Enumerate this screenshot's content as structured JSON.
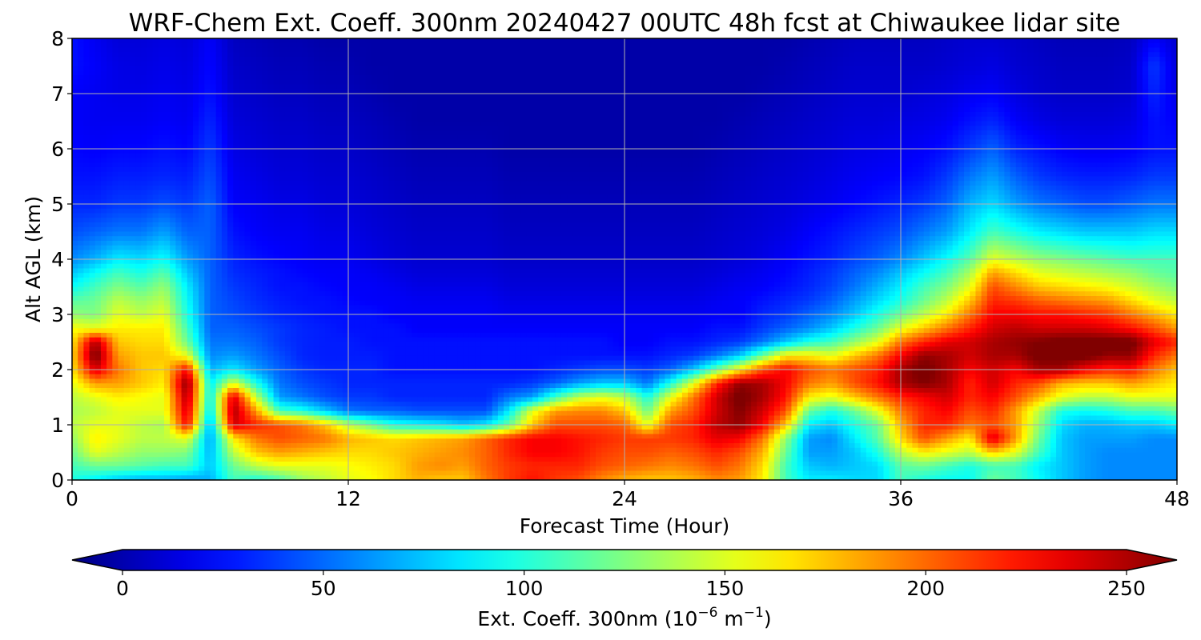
{
  "chart_data": {
    "type": "heatmap",
    "title": "WRF-Chem Ext. Coeff. 300nm  20240427 00UTC 48h fcst at Chiwaukee lidar site",
    "xlabel": "Forecast Time (Hour)",
    "ylabel": "Alt AGL (km)",
    "xlim": [
      0,
      48
    ],
    "ylim": [
      0,
      8
    ],
    "xticks": [
      0,
      12,
      24,
      36,
      48
    ],
    "yticks": [
      0,
      1,
      2,
      3,
      4,
      5,
      6,
      7,
      8
    ],
    "grid": true,
    "colormap": "jet",
    "colorbar": {
      "label_main": "Ext. Coeff. 300nm  (10",
      "exp1": "−6",
      "label_mid": " m",
      "exp2": "−1",
      "label_end": ")",
      "range": [
        0,
        250
      ],
      "ticks": [
        0,
        50,
        100,
        150,
        200,
        250
      ],
      "extend": "both",
      "orientation": "horizontal"
    },
    "x": [
      0,
      1,
      2,
      3,
      4,
      5,
      6,
      7,
      8,
      9,
      10,
      11,
      12,
      13,
      14,
      15,
      16,
      17,
      18,
      19,
      20,
      21,
      22,
      23,
      24,
      25,
      26,
      27,
      28,
      29,
      30,
      31,
      32,
      33,
      34,
      35,
      36,
      37,
      38,
      39,
      40,
      41,
      42,
      43,
      44,
      45,
      46,
      47,
      48
    ],
    "y": [
      0,
      0.25,
      0.5,
      0.75,
      1.0,
      1.25,
      1.5,
      1.75,
      2.0,
      2.25,
      2.5,
      2.75,
      3.0,
      3.25,
      3.5,
      3.75,
      4.0,
      4.5,
      5.0,
      5.5,
      6.0,
      6.5,
      7.0,
      7.5,
      8.0
    ],
    "z": [
      [
        100,
        90,
        80,
        75,
        75,
        70,
        75,
        110,
        100,
        110,
        130,
        140,
        150,
        155,
        165,
        175,
        170,
        170,
        190,
        205,
        215,
        205,
        200,
        185,
        175,
        170,
        170,
        175,
        185,
        180,
        160,
        110,
        90,
        90,
        85,
        85,
        110,
        100,
        95,
        95,
        120,
        110,
        95,
        80,
        70,
        65,
        65,
        65,
        65
      ],
      [
        110,
        120,
        120,
        115,
        110,
        110,
        80,
        120,
        140,
        150,
        150,
        150,
        155,
        160,
        165,
        180,
        185,
        180,
        195,
        205,
        210,
        210,
        210,
        200,
        195,
        190,
        185,
        190,
        200,
        190,
        165,
        110,
        80,
        75,
        80,
        85,
        115,
        120,
        110,
        100,
        110,
        110,
        90,
        80,
        70,
        65,
        65,
        65,
        65
      ],
      [
        120,
        150,
        140,
        130,
        130,
        125,
        75,
        140,
        170,
        180,
        175,
        170,
        165,
        165,
        170,
        175,
        180,
        185,
        195,
        210,
        220,
        220,
        215,
        205,
        200,
        200,
        195,
        200,
        210,
        200,
        175,
        120,
        70,
        70,
        80,
        100,
        140,
        160,
        150,
        140,
        170,
        150,
        110,
        80,
        70,
        65,
        65,
        65,
        65
      ],
      [
        130,
        160,
        150,
        140,
        140,
        150,
        70,
        160,
        190,
        200,
        195,
        190,
        175,
        170,
        165,
        170,
        175,
        180,
        195,
        210,
        220,
        220,
        215,
        210,
        205,
        205,
        205,
        210,
        225,
        220,
        190,
        130,
        70,
        65,
        90,
        115,
        165,
        200,
        180,
        160,
        230,
        180,
        120,
        80,
        70,
        70,
        70,
        65,
        65
      ],
      [
        140,
        150,
        150,
        140,
        135,
        220,
        70,
        230,
        210,
        200,
        190,
        170,
        140,
        120,
        100,
        95,
        90,
        80,
        90,
        120,
        170,
        200,
        200,
        200,
        195,
        150,
        200,
        210,
        235,
        245,
        220,
        170,
        90,
        80,
        100,
        120,
        175,
        210,
        210,
        190,
        200,
        180,
        130,
        85,
        75,
        75,
        80,
        80,
        90
      ],
      [
        135,
        140,
        150,
        150,
        150,
        230,
        85,
        240,
        180,
        110,
        100,
        80,
        60,
        55,
        55,
        50,
        50,
        50,
        50,
        90,
        150,
        180,
        185,
        185,
        170,
        120,
        180,
        200,
        230,
        250,
        230,
        200,
        120,
        100,
        120,
        150,
        190,
        210,
        220,
        200,
        210,
        180,
        140,
        100,
        95,
        100,
        110,
        110,
        120
      ],
      [
        140,
        150,
        160,
        155,
        150,
        240,
        90,
        230,
        140,
        70,
        60,
        50,
        45,
        45,
        40,
        40,
        40,
        40,
        40,
        60,
        70,
        110,
        140,
        150,
        140,
        100,
        150,
        190,
        230,
        255,
        240,
        215,
        160,
        150,
        170,
        190,
        210,
        220,
        230,
        210,
        220,
        200,
        175,
        150,
        140,
        140,
        150,
        150,
        150
      ],
      [
        150,
        180,
        180,
        170,
        160,
        250,
        90,
        150,
        100,
        60,
        50,
        45,
        40,
        40,
        40,
        40,
        40,
        40,
        40,
        40,
        45,
        55,
        70,
        80,
        80,
        60,
        100,
        150,
        210,
        245,
        240,
        220,
        190,
        180,
        200,
        215,
        240,
        250,
        240,
        210,
        230,
        210,
        200,
        175,
        170,
        170,
        180,
        170,
        160
      ],
      [
        160,
        230,
        190,
        170,
        165,
        220,
        75,
        90,
        70,
        55,
        45,
        40,
        40,
        40,
        35,
        35,
        35,
        35,
        35,
        35,
        35,
        40,
        45,
        50,
        50,
        45,
        55,
        80,
        120,
        160,
        200,
        220,
        200,
        190,
        200,
        210,
        240,
        255,
        240,
        220,
        230,
        220,
        240,
        240,
        220,
        210,
        215,
        190,
        170
      ],
      [
        165,
        255,
        180,
        170,
        170,
        150,
        65,
        70,
        60,
        50,
        40,
        38,
        38,
        38,
        35,
        35,
        35,
        35,
        35,
        35,
        35,
        35,
        35,
        35,
        35,
        35,
        40,
        45,
        60,
        80,
        120,
        160,
        160,
        150,
        170,
        190,
        220,
        245,
        240,
        230,
        240,
        240,
        255,
        255,
        255,
        245,
        245,
        210,
        190
      ],
      [
        160,
        240,
        170,
        165,
        165,
        120,
        60,
        60,
        55,
        45,
        40,
        38,
        38,
        35,
        35,
        35,
        35,
        35,
        35,
        35,
        35,
        35,
        35,
        35,
        30,
        30,
        35,
        35,
        40,
        45,
        60,
        80,
        100,
        110,
        130,
        150,
        190,
        210,
        225,
        230,
        240,
        245,
        250,
        255,
        255,
        255,
        255,
        225,
        210
      ],
      [
        155,
        150,
        160,
        160,
        160,
        110,
        55,
        55,
        50,
        45,
        40,
        38,
        35,
        35,
        35,
        30,
        30,
        30,
        30,
        30,
        30,
        30,
        30,
        30,
        30,
        30,
        30,
        30,
        35,
        35,
        45,
        55,
        65,
        80,
        100,
        120,
        150,
        170,
        190,
        210,
        230,
        235,
        230,
        230,
        230,
        225,
        215,
        200,
        180
      ],
      [
        130,
        125,
        150,
        140,
        150,
        100,
        55,
        50,
        45,
        40,
        38,
        35,
        35,
        35,
        30,
        30,
        30,
        30,
        30,
        28,
        28,
        28,
        28,
        28,
        28,
        28,
        28,
        28,
        30,
        30,
        40,
        45,
        55,
        65,
        80,
        100,
        120,
        140,
        160,
        190,
        220,
        220,
        215,
        215,
        210,
        205,
        190,
        175,
        160
      ],
      [
        115,
        120,
        140,
        130,
        140,
        95,
        55,
        48,
        42,
        38,
        35,
        35,
        32,
        30,
        30,
        28,
        28,
        28,
        28,
        25,
        25,
        25,
        25,
        25,
        25,
        25,
        25,
        25,
        28,
        30,
        35,
        40,
        45,
        55,
        70,
        85,
        100,
        120,
        140,
        170,
        210,
        205,
        195,
        190,
        185,
        180,
        165,
        150,
        140
      ],
      [
        95,
        110,
        125,
        115,
        130,
        90,
        55,
        45,
        40,
        35,
        35,
        32,
        30,
        30,
        28,
        25,
        25,
        25,
        25,
        22,
        22,
        22,
        22,
        22,
        22,
        22,
        22,
        22,
        25,
        28,
        30,
        35,
        40,
        48,
        60,
        75,
        90,
        110,
        125,
        150,
        200,
        185,
        170,
        165,
        160,
        155,
        145,
        135,
        125
      ],
      [
        80,
        95,
        110,
        100,
        115,
        80,
        55,
        42,
        38,
        35,
        32,
        30,
        30,
        28,
        25,
        22,
        22,
        22,
        22,
        20,
        20,
        20,
        20,
        20,
        20,
        20,
        20,
        20,
        22,
        25,
        28,
        32,
        38,
        45,
        55,
        65,
        80,
        95,
        110,
        135,
        180,
        165,
        150,
        145,
        140,
        135,
        130,
        120,
        115
      ],
      [
        65,
        75,
        90,
        85,
        95,
        70,
        55,
        40,
        35,
        32,
        30,
        28,
        28,
        25,
        22,
        20,
        20,
        20,
        20,
        18,
        18,
        18,
        18,
        18,
        18,
        18,
        18,
        18,
        20,
        22,
        25,
        30,
        35,
        40,
        48,
        55,
        65,
        80,
        95,
        115,
        150,
        140,
        130,
        125,
        120,
        115,
        110,
        110,
        110
      ],
      [
        50,
        55,
        60,
        60,
        70,
        55,
        55,
        35,
        30,
        28,
        28,
        25,
        25,
        22,
        20,
        18,
        18,
        18,
        18,
        16,
        16,
        16,
        16,
        16,
        16,
        16,
        16,
        16,
        18,
        20,
        22,
        25,
        30,
        35,
        40,
        45,
        50,
        60,
        70,
        90,
        110,
        100,
        90,
        85,
        80,
        80,
        80,
        85,
        85
      ],
      [
        40,
        40,
        45,
        45,
        50,
        45,
        55,
        30,
        28,
        25,
        25,
        22,
        22,
        20,
        18,
        16,
        16,
        16,
        16,
        14,
        14,
        14,
        14,
        14,
        14,
        14,
        14,
        14,
        16,
        18,
        20,
        22,
        25,
        28,
        32,
        36,
        40,
        45,
        55,
        75,
        85,
        70,
        60,
        55,
        50,
        50,
        55,
        60,
        60
      ],
      [
        35,
        35,
        38,
        38,
        40,
        38,
        50,
        28,
        25,
        22,
        22,
        20,
        20,
        18,
        16,
        14,
        14,
        14,
        14,
        12,
        12,
        12,
        12,
        12,
        12,
        12,
        12,
        12,
        14,
        16,
        18,
        20,
        22,
        25,
        28,
        30,
        32,
        35,
        45,
        60,
        70,
        55,
        45,
        40,
        38,
        38,
        40,
        45,
        45
      ],
      [
        32,
        30,
        32,
        32,
        35,
        32,
        45,
        25,
        22,
        20,
        20,
        18,
        18,
        16,
        14,
        12,
        12,
        12,
        12,
        10,
        10,
        10,
        10,
        10,
        10,
        10,
        10,
        10,
        12,
        14,
        16,
        18,
        20,
        22,
        25,
        26,
        28,
        30,
        35,
        45,
        55,
        40,
        35,
        30,
        28,
        28,
        30,
        35,
        35
      ],
      [
        30,
        28,
        28,
        28,
        30,
        28,
        40,
        22,
        20,
        18,
        18,
        16,
        16,
        14,
        12,
        10,
        10,
        10,
        10,
        10,
        10,
        10,
        10,
        10,
        10,
        10,
        10,
        10,
        10,
        12,
        14,
        16,
        18,
        20,
        22,
        22,
        24,
        25,
        28,
        35,
        40,
        30,
        25,
        22,
        22,
        22,
        24,
        35,
        30
      ],
      [
        30,
        28,
        26,
        26,
        28,
        26,
        35,
        20,
        18,
        16,
        16,
        14,
        14,
        12,
        10,
        10,
        10,
        10,
        10,
        10,
        10,
        10,
        10,
        10,
        10,
        10,
        10,
        10,
        10,
        10,
        12,
        14,
        16,
        18,
        20,
        20,
        20,
        22,
        24,
        28,
        30,
        24,
        20,
        18,
        18,
        18,
        20,
        40,
        25
      ],
      [
        35,
        30,
        25,
        24,
        26,
        24,
        32,
        18,
        16,
        14,
        14,
        12,
        12,
        10,
        10,
        10,
        10,
        10,
        10,
        10,
        10,
        10,
        10,
        10,
        10,
        10,
        10,
        10,
        10,
        10,
        10,
        12,
        14,
        16,
        18,
        18,
        18,
        18,
        20,
        22,
        24,
        20,
        18,
        16,
        16,
        16,
        18,
        45,
        22
      ],
      [
        35,
        28,
        22,
        22,
        24,
        22,
        30,
        16,
        14,
        12,
        12,
        10,
        10,
        10,
        10,
        10,
        10,
        10,
        10,
        10,
        10,
        10,
        10,
        10,
        10,
        10,
        10,
        10,
        10,
        10,
        10,
        10,
        12,
        14,
        16,
        16,
        16,
        16,
        18,
        20,
        20,
        18,
        16,
        14,
        14,
        14,
        16,
        30,
        20
      ]
    ]
  }
}
